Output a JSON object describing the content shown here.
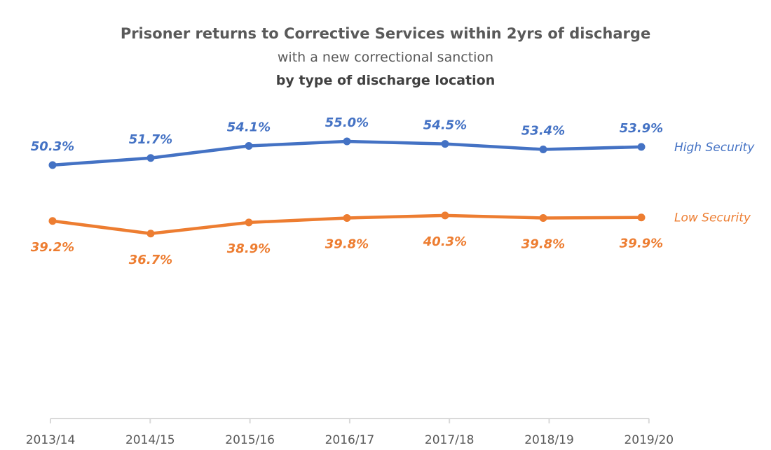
{
  "chart_data": {
    "type": "line",
    "title": "Prisoner returns to Corrective Services within 2yrs of discharge",
    "subtitle": "with a new correctional sanction",
    "subtitle2": "by type of discharge location",
    "categories": [
      "2013/14",
      "2014/15",
      "2015/16",
      "2016/17",
      "2017/18",
      "2018/19",
      "2019/20"
    ],
    "series": [
      {
        "name": "High Security",
        "values": [
          50.3,
          51.7,
          54.1,
          55.0,
          54.5,
          53.4,
          53.9
        ],
        "labels": [
          "50.3%",
          "51.7%",
          "54.1%",
          "55.0%",
          "54.5%",
          "53.4%",
          "53.9%"
        ],
        "color": "#4472C4"
      },
      {
        "name": "Low Security",
        "values": [
          39.2,
          36.7,
          38.9,
          39.8,
          40.3,
          39.8,
          39.9
        ],
        "labels": [
          "39.2%",
          "36.7%",
          "38.9%",
          "39.8%",
          "40.3%",
          "39.8%",
          "39.9%"
        ],
        "color": "#ED7D31"
      }
    ],
    "ylim": [
      0,
      60
    ],
    "grid": false,
    "legend": "inline-right"
  }
}
